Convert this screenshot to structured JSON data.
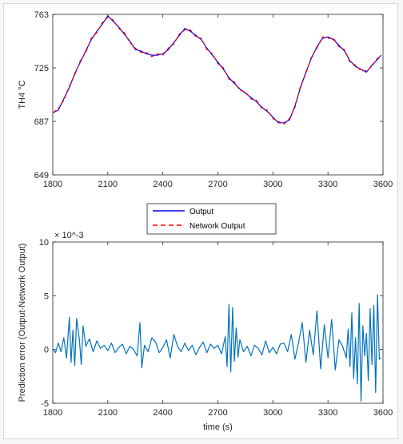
{
  "chart_data": [
    {
      "type": "line",
      "ylabel": "TH4 °C",
      "xlabel": "",
      "xlim": [
        1800,
        3600
      ],
      "ylim": [
        649,
        763
      ],
      "xticks": [
        1800,
        2100,
        2400,
        2700,
        3000,
        3300,
        3600
      ],
      "yticks": [
        649,
        687,
        725,
        763
      ],
      "grid": false,
      "legend_position": "below-plot-center",
      "series": [
        {
          "name": "Output",
          "color": "#0000ff",
          "style": "solid",
          "x": [
            1800,
            1830,
            1860,
            1890,
            1920,
            1950,
            1980,
            2010,
            2040,
            2070,
            2100,
            2130,
            2160,
            2190,
            2220,
            2250,
            2280,
            2310,
            2340,
            2370,
            2400,
            2430,
            2460,
            2490,
            2520,
            2550,
            2580,
            2610,
            2640,
            2670,
            2700,
            2730,
            2760,
            2790,
            2820,
            2850,
            2880,
            2910,
            2940,
            2970,
            3000,
            3030,
            3060,
            3090,
            3120,
            3150,
            3180,
            3210,
            3240,
            3270,
            3300,
            3330,
            3360,
            3390,
            3420,
            3450,
            3480,
            3510,
            3540,
            3570,
            3590
          ],
          "y": [
            693,
            695,
            703,
            711,
            721,
            729,
            737,
            745,
            751,
            756,
            762,
            758,
            754,
            749,
            744,
            738,
            737,
            735,
            734,
            734,
            735,
            738,
            743,
            748,
            753,
            751,
            748,
            745,
            739,
            734,
            729,
            724,
            718,
            714,
            710,
            707,
            704,
            701,
            697,
            694,
            690,
            686,
            686,
            688,
            698,
            711,
            722,
            732,
            740,
            746,
            747,
            745,
            741,
            737,
            730,
            726,
            724,
            722,
            727,
            731,
            734
          ]
        },
        {
          "name": "Network Output",
          "color": "#ff0000",
          "style": "dashed",
          "x": [
            1800,
            1830,
            1860,
            1890,
            1920,
            1950,
            1980,
            2010,
            2040,
            2070,
            2100,
            2130,
            2160,
            2190,
            2220,
            2250,
            2280,
            2310,
            2340,
            2370,
            2400,
            2430,
            2460,
            2490,
            2520,
            2550,
            2580,
            2610,
            2640,
            2670,
            2700,
            2730,
            2760,
            2790,
            2820,
            2850,
            2880,
            2910,
            2940,
            2970,
            3000,
            3030,
            3060,
            3090,
            3120,
            3150,
            3180,
            3210,
            3240,
            3270,
            3300,
            3330,
            3360,
            3390,
            3420,
            3450,
            3480,
            3510,
            3540,
            3570,
            3590
          ],
          "y": [
            693,
            696,
            702,
            712,
            720,
            730,
            736,
            746,
            750,
            757,
            761,
            759,
            753,
            750,
            743,
            739,
            736,
            736,
            733,
            735,
            734,
            739,
            742,
            749,
            752,
            752,
            747,
            746,
            738,
            735,
            728,
            725,
            717,
            715,
            709,
            708,
            703,
            702,
            696,
            695,
            689,
            687,
            685,
            689,
            697,
            712,
            721,
            733,
            739,
            747,
            746,
            746,
            740,
            738,
            729,
            727,
            723,
            723,
            726,
            732,
            733
          ]
        }
      ]
    },
    {
      "type": "line",
      "ylabel": "Prediction error (Output-Network Output)",
      "xlabel": "time (s)",
      "xlim": [
        1800,
        3600
      ],
      "ylim": [
        -5,
        10
      ],
      "xticks": [
        1800,
        2100,
        2400,
        2700,
        3000,
        3300,
        3600
      ],
      "yticks": [
        -5,
        0,
        5,
        10
      ],
      "y_exponent_label": "× 10^-3",
      "grid": false,
      "series": [
        {
          "name": "",
          "color": "#0072bd",
          "style": "solid",
          "x": [
            1800,
            1815,
            1830,
            1845,
            1860,
            1875,
            1890,
            1900,
            1910,
            1920,
            1930,
            1945,
            1955,
            1965,
            1980,
            2000,
            2020,
            2040,
            2060,
            2080,
            2100,
            2120,
            2140,
            2160,
            2180,
            2200,
            2220,
            2240,
            2260,
            2275,
            2285,
            2300,
            2320,
            2340,
            2360,
            2380,
            2400,
            2420,
            2440,
            2460,
            2480,
            2500,
            2520,
            2540,
            2560,
            2580,
            2600,
            2620,
            2640,
            2660,
            2680,
            2700,
            2720,
            2740,
            2750,
            2760,
            2770,
            2780,
            2790,
            2800,
            2810,
            2820,
            2840,
            2860,
            2880,
            2900,
            2920,
            2940,
            2960,
            2980,
            3000,
            3020,
            3040,
            3060,
            3080,
            3100,
            3120,
            3140,
            3160,
            3180,
            3200,
            3220,
            3240,
            3260,
            3280,
            3300,
            3320,
            3340,
            3360,
            3380,
            3400,
            3410,
            3420,
            3430,
            3440,
            3450,
            3460,
            3470,
            3480,
            3490,
            3500,
            3510,
            3520,
            3530,
            3540,
            3550,
            3560,
            3570,
            3580,
            3590
          ],
          "y": [
            0.1,
            -0.3,
            0.6,
            -0.2,
            1.1,
            -0.8,
            3.0,
            -1.2,
            1.8,
            -1.5,
            2.9,
            0.9,
            -1.4,
            2.2,
            0.3,
            1.0,
            -0.2,
            0.8,
            0.1,
            0.4,
            -0.1,
            0.6,
            -0.3,
            0.2,
            0.5,
            -0.4,
            0.3,
            0.0,
            -0.6,
            2.5,
            -1.7,
            0.4,
            -0.2,
            1.1,
            0.7,
            -0.3,
            0.2,
            0.9,
            -0.8,
            1.4,
            0.3,
            -0.2,
            0.6,
            -0.1,
            0.4,
            -0.5,
            0.2,
            0.7,
            -0.3,
            0.5,
            0.1,
            0.4,
            -0.4,
            1.2,
            -1.6,
            4.2,
            -2.1,
            3.9,
            -1.1,
            2.0,
            -0.7,
            0.9,
            -0.2,
            0.3,
            -0.6,
            0.4,
            0.1,
            -0.5,
            0.8,
            -0.3,
            0.2,
            -0.4,
            0.5,
            0.6,
            -0.2,
            1.4,
            -0.9,
            0.7,
            2.5,
            -1.2,
            1.8,
            -0.5,
            3.6,
            -1.8,
            2.3,
            -0.8,
            2.8,
            -1.9,
            0.9,
            0.3,
            -0.8,
            1.9,
            -1.6,
            3.4,
            -2.7,
            1.1,
            -3.2,
            4.3,
            -4.8,
            2.2,
            -0.6,
            1.5,
            -2.9,
            3.8,
            -1.4,
            4.1,
            -4.0,
            5.1,
            -0.9,
            -0.8
          ]
        }
      ]
    }
  ],
  "legend": {
    "entries": [
      "Output",
      "Network Output"
    ]
  }
}
